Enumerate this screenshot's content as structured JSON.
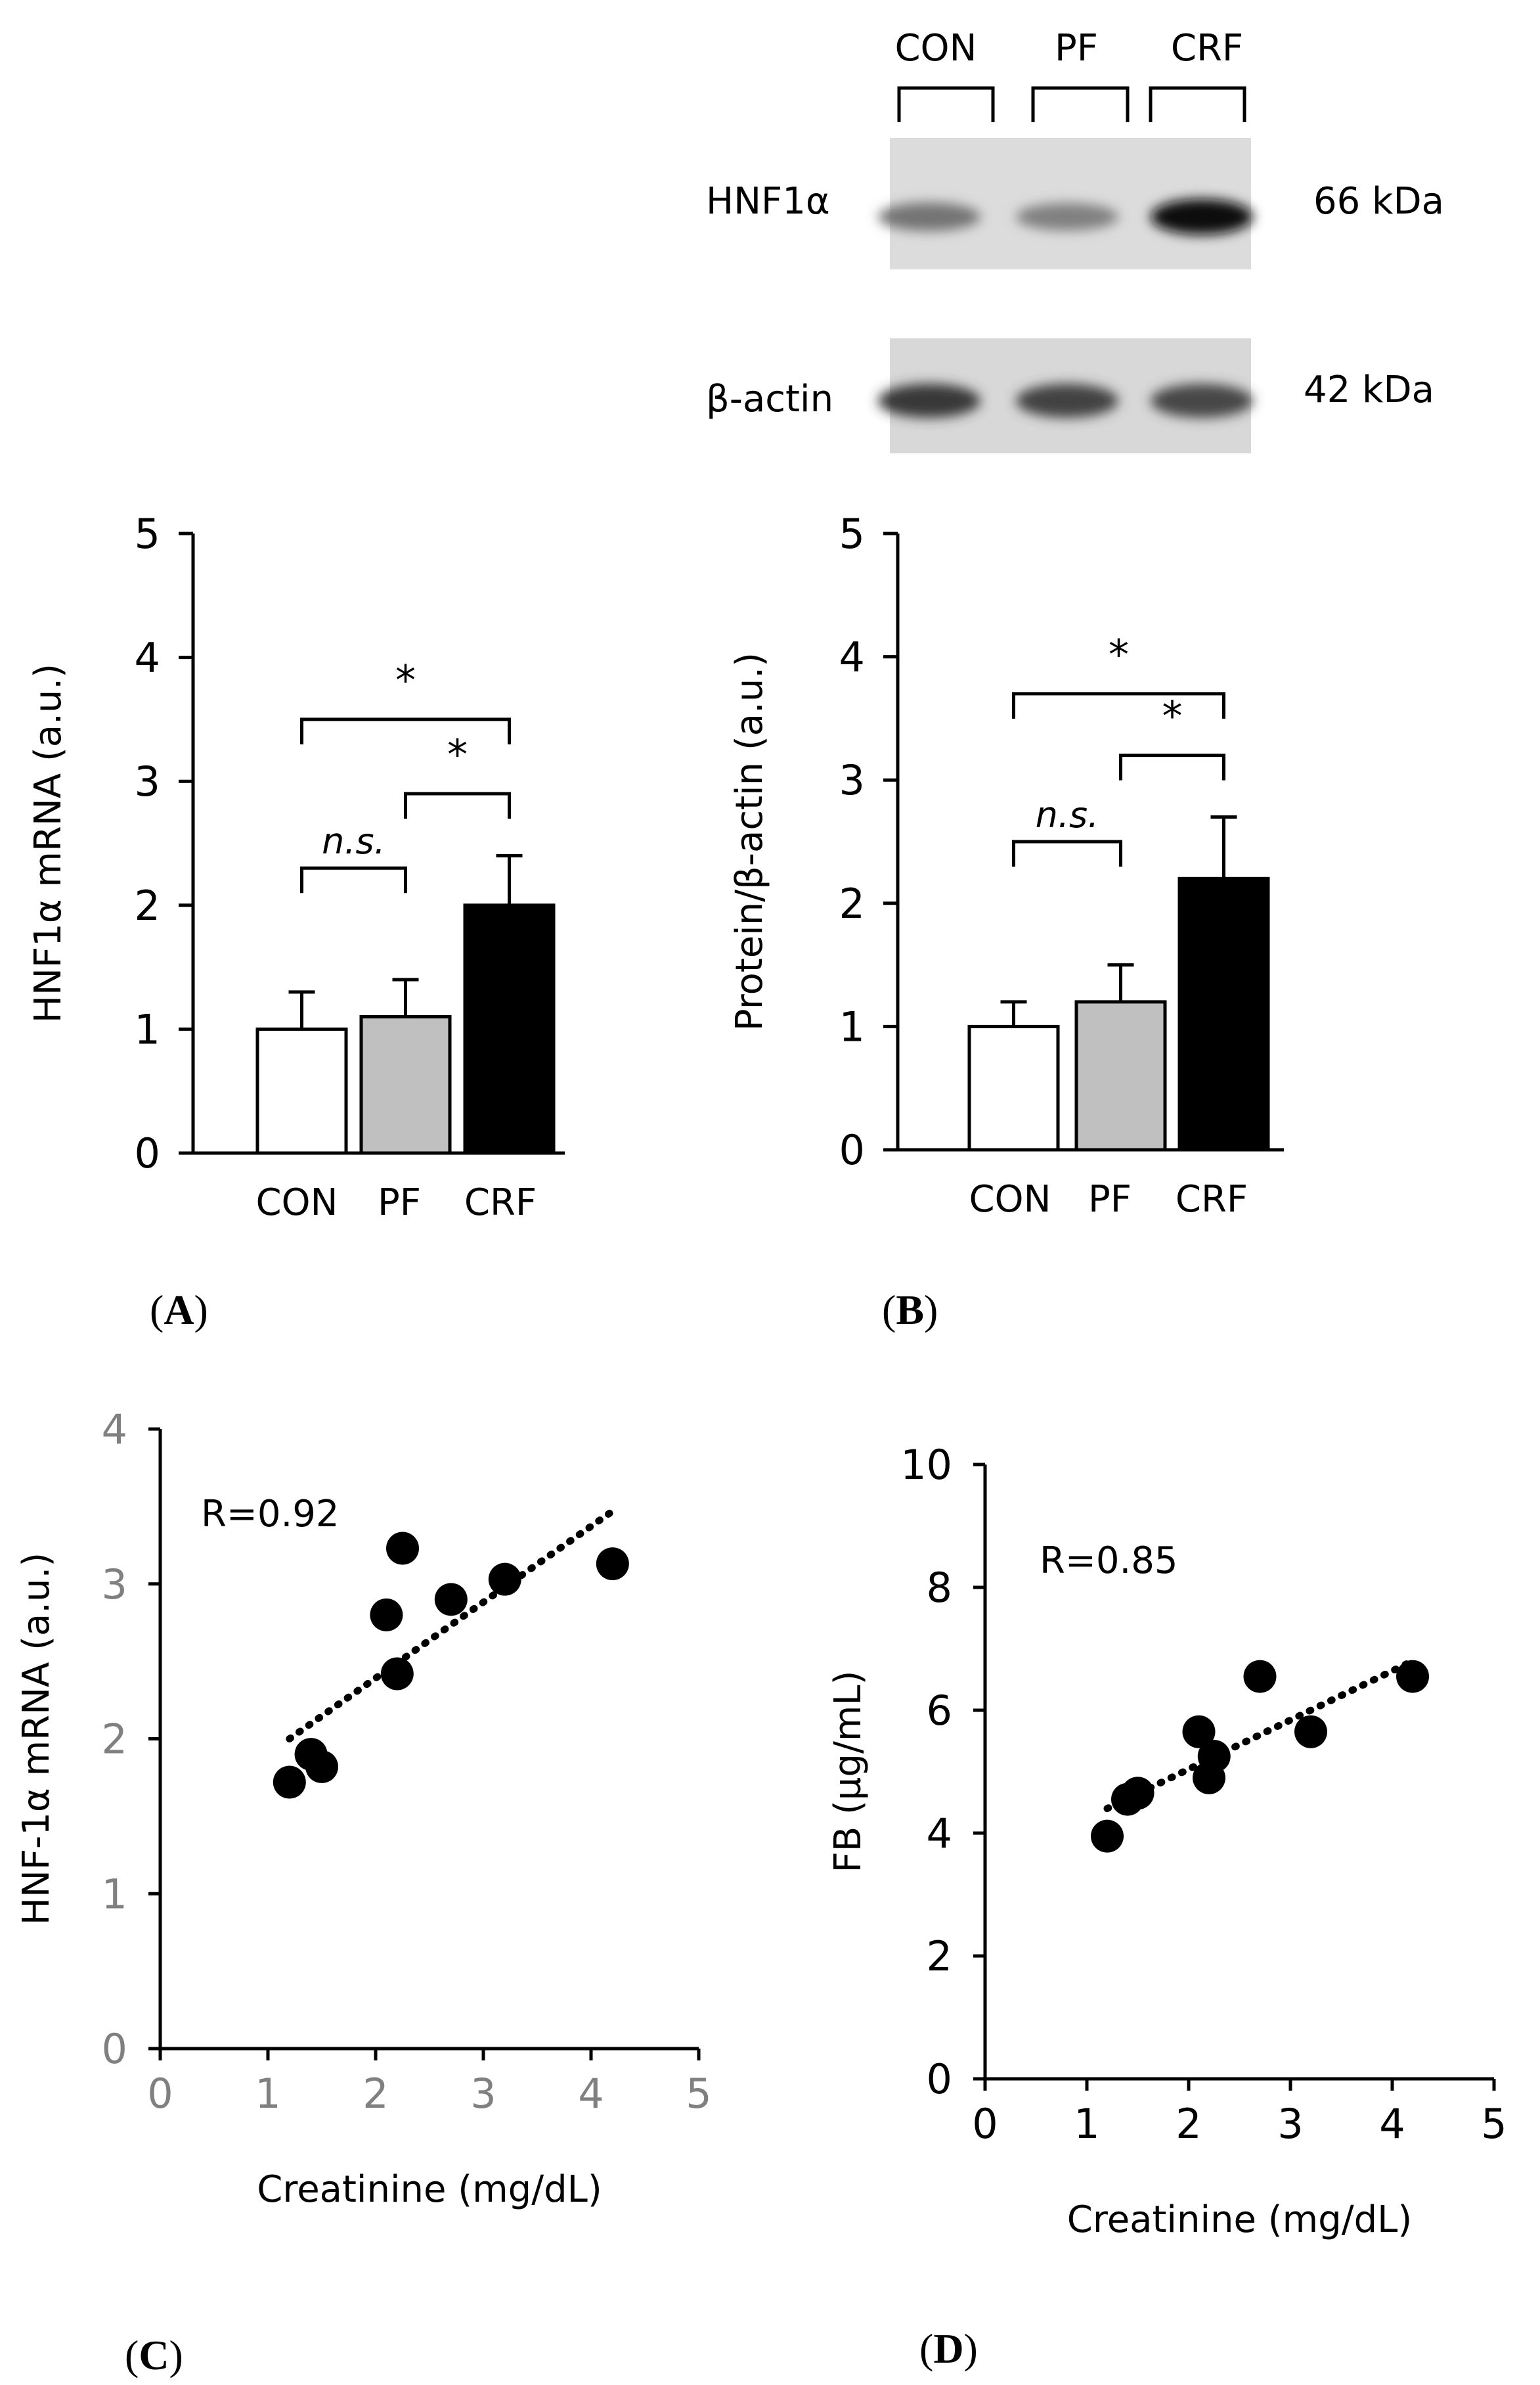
{
  "blot": {
    "lanes": [
      "CON",
      "PF",
      "CRF"
    ],
    "rows": [
      {
        "protein": "HNF1α",
        "size": "66 kDa",
        "intensity": [
          0.55,
          0.5,
          0.95
        ]
      },
      {
        "protein": "β-actin",
        "size": "42 kDa",
        "intensity": [
          0.78,
          0.74,
          0.72
        ]
      }
    ]
  },
  "chart_data": [
    {
      "panel": "A",
      "type": "bar",
      "categories": [
        "CON",
        "PF",
        "CRF"
      ],
      "values": [
        1.0,
        1.1,
        2.0
      ],
      "errors": [
        0.3,
        0.3,
        0.4
      ],
      "bar_colors": [
        "#ffffff",
        "#c0c0c0",
        "#000000"
      ],
      "ylabel": "HNF1α mRNA (a.u.)",
      "ylim": [
        0,
        5
      ],
      "yticks": [
        "0",
        "1",
        "2",
        "3",
        "4",
        "5"
      ],
      "brackets": [
        {
          "from": 0,
          "to": 1,
          "label": "n.s.",
          "y": 2.3
        },
        {
          "from": 1,
          "to": 2,
          "label": "*",
          "y": 2.9
        },
        {
          "from": 0,
          "to": 2,
          "label": "*",
          "y": 3.5
        }
      ]
    },
    {
      "panel": "B",
      "type": "bar",
      "categories": [
        "CON",
        "PF",
        "CRF"
      ],
      "values": [
        1.0,
        1.2,
        2.2
      ],
      "errors": [
        0.2,
        0.3,
        0.5
      ],
      "bar_colors": [
        "#ffffff",
        "#c0c0c0",
        "#000000"
      ],
      "ylabel": "Protein/β-actin (a.u.)",
      "ylim": [
        0,
        5
      ],
      "yticks": [
        "0",
        "1",
        "2",
        "3",
        "4",
        "5"
      ],
      "brackets": [
        {
          "from": 0,
          "to": 1,
          "label": "n.s.",
          "y": 2.5
        },
        {
          "from": 1,
          "to": 2,
          "label": "*",
          "y": 3.2
        },
        {
          "from": 0,
          "to": 2,
          "label": "*",
          "y": 3.7
        }
      ]
    },
    {
      "panel": "C",
      "type": "scatter",
      "xlabel": "Creatinine (mg/dL)",
      "ylabel": "HNF-1α mRNA (a.u.)",
      "xlim": [
        0,
        5
      ],
      "ylim": [
        0,
        4
      ],
      "xticks": [
        "0",
        "1",
        "2",
        "3",
        "4",
        "5"
      ],
      "yticks": [
        "0",
        "1",
        "2",
        "3",
        "4"
      ],
      "annotation": "R=0.92",
      "trendline": {
        "x": [
          1.2,
          4.2
        ],
        "y": [
          2.0,
          3.47
        ]
      },
      "points": [
        {
          "x": 1.2,
          "y": 1.72
        },
        {
          "x": 1.4,
          "y": 1.9
        },
        {
          "x": 1.5,
          "y": 1.82
        },
        {
          "x": 2.1,
          "y": 2.8
        },
        {
          "x": 2.2,
          "y": 2.42
        },
        {
          "x": 2.25,
          "y": 3.23
        },
        {
          "x": 2.7,
          "y": 2.9
        },
        {
          "x": 3.2,
          "y": 3.03
        },
        {
          "x": 4.2,
          "y": 3.13
        }
      ]
    },
    {
      "panel": "D",
      "type": "scatter",
      "xlabel": "Creatinine (mg/dL)",
      "ylabel": "FB  (µg/mL)",
      "xlim": [
        0,
        5
      ],
      "ylim": [
        0,
        10
      ],
      "xticks": [
        "0",
        "1",
        "2",
        "3",
        "4",
        "5"
      ],
      "yticks": [
        "0",
        "2",
        "4",
        "6",
        "8",
        "10"
      ],
      "annotation": "R=0.85",
      "trendline": {
        "x": [
          1.2,
          4.2
        ],
        "y": [
          4.4,
          6.8
        ]
      },
      "points": [
        {
          "x": 1.2,
          "y": 3.95
        },
        {
          "x": 1.4,
          "y": 4.55
        },
        {
          "x": 1.5,
          "y": 4.65
        },
        {
          "x": 2.1,
          "y": 5.65
        },
        {
          "x": 2.2,
          "y": 4.9
        },
        {
          "x": 2.25,
          "y": 5.25
        },
        {
          "x": 2.7,
          "y": 6.55
        },
        {
          "x": 3.2,
          "y": 5.65
        },
        {
          "x": 4.2,
          "y": 6.55
        }
      ]
    }
  ],
  "panel_labels": {
    "A": {
      "open": "(",
      "letter": "A",
      "close": ")"
    },
    "B": {
      "open": "(",
      "letter": "B",
      "close": ")"
    },
    "C": {
      "open": "(",
      "letter": "C",
      "close": ")"
    },
    "D": {
      "open": "(",
      "letter": "D",
      "close": ")"
    }
  }
}
